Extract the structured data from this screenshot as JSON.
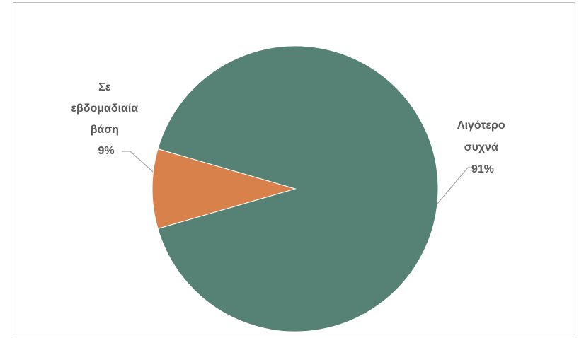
{
  "chart_data": {
    "type": "pie",
    "title": "",
    "slices": [
      {
        "label_lines": [
          "Λιγότερο",
          "συχνά"
        ],
        "percent_label": "91%",
        "value": 91,
        "color": "#568276"
      },
      {
        "label_lines": [
          "Σε",
          "εβδομαδιαία",
          "βάση"
        ],
        "percent_label": "9%",
        "value": 9,
        "color": "#D9814A"
      }
    ],
    "legend": "none",
    "leader_line_color": "#a6a6a6"
  }
}
